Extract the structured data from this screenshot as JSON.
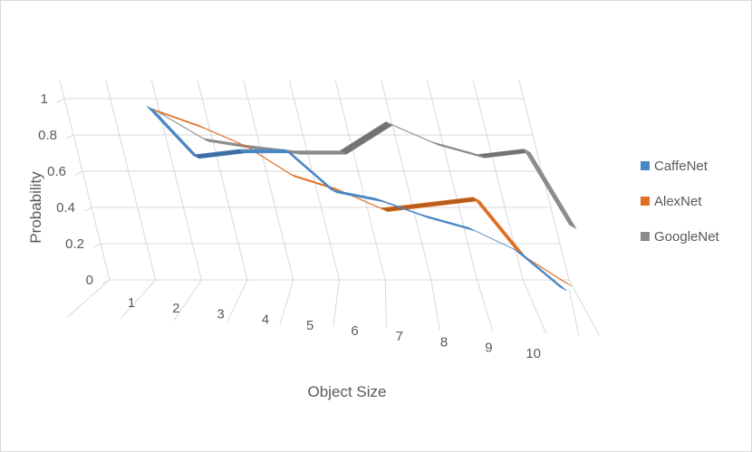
{
  "chart_data": {
    "type": "line",
    "style": "3d-line",
    "xlabel": "Object Size",
    "ylabel": "Probability",
    "categories": [
      "1",
      "2",
      "3",
      "4",
      "5",
      "6",
      "7",
      "8",
      "9",
      "10"
    ],
    "ylim": [
      0,
      1
    ],
    "yticks": [
      "0",
      "0.2",
      "0.4",
      "0.6",
      "0.8",
      "1"
    ],
    "grid": true,
    "legend_position": "right",
    "series": [
      {
        "name": "CaffeNet",
        "color": "#4a86c4",
        "values": [
          1.0,
          0.73,
          0.76,
          0.76,
          0.54,
          0.49,
          0.4,
          0.33,
          0.21,
          0.0
        ]
      },
      {
        "name": "AlexNet",
        "color": "#e07024",
        "values": [
          1.0,
          0.91,
          0.8,
          0.64,
          0.56,
          0.45,
          0.48,
          0.51,
          0.2,
          0.04
        ]
      },
      {
        "name": "GoogleNet",
        "color": "#8c8c8c",
        "values": [
          1.0,
          0.85,
          0.81,
          0.78,
          0.78,
          0.94,
          0.83,
          0.76,
          0.79,
          0.37
        ]
      }
    ]
  }
}
